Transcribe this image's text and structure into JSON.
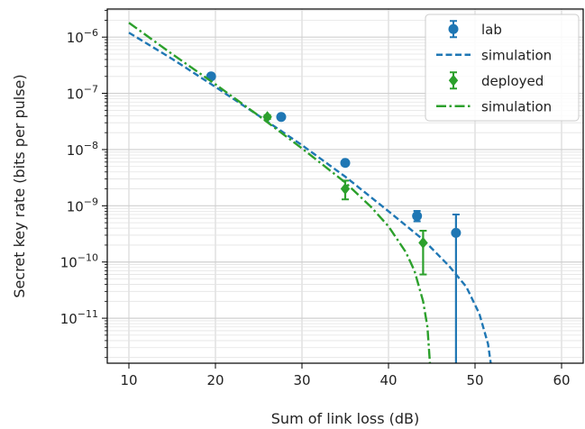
{
  "chart_data": {
    "type": "scatter",
    "xlabel": "Sum of link loss (dB)",
    "ylabel": "Secret key rate (bits per pulse)",
    "xlim": [
      7.5,
      62.5
    ],
    "ylim_log10": [
      -11.8,
      -5.5
    ],
    "y_scale": "log",
    "grid": true,
    "legend_position": "top-right",
    "x_ticks": [
      10,
      20,
      30,
      40,
      50,
      60
    ],
    "x_tick_labels": [
      "10",
      "20",
      "30",
      "40",
      "50",
      "60"
    ],
    "y_ticks_log10": [
      -6,
      -7,
      -8,
      -9,
      -10,
      -11
    ],
    "y_tick_labels": [
      {
        "base": "10",
        "exp": "−6"
      },
      {
        "base": "10",
        "exp": "−7"
      },
      {
        "base": "10",
        "exp": "−8"
      },
      {
        "base": "10",
        "exp": "−9"
      },
      {
        "base": "10",
        "exp": "−10"
      },
      {
        "base": "10",
        "exp": "−11"
      }
    ],
    "series": [
      {
        "name": "lab",
        "kind": "errorbar",
        "color": "#1f77b4",
        "marker": "circle",
        "x": [
          19.5,
          27.6,
          35.0,
          43.3,
          47.8
        ],
        "y": [
          2e-07,
          3.8e-08,
          5.8e-09,
          6.6e-10,
          3.3e-10
        ],
        "y_err_low": [
          1.9e-07,
          3.7e-08,
          5.6e-09,
          5.3e-10,
          1e-12
        ],
        "y_err_high": [
          2.1e-07,
          3.9e-08,
          6e-09,
          8.1e-10,
          7e-10
        ]
      },
      {
        "name": "simulation",
        "kind": "line",
        "style": "dashed",
        "color": "#1f77b4",
        "x": [
          10,
          15,
          20,
          25,
          30,
          35,
          40,
          44,
          47,
          49,
          50.5,
          51.5,
          52.0
        ],
        "y": [
          1.2e-06,
          4.1e-07,
          1.3e-07,
          4e-08,
          1.2e-08,
          3.3e-09,
          8e-10,
          2.5e-10,
          8.5e-11,
          3.6e-11,
          1.2e-11,
          3.5e-12,
          1e-12
        ]
      },
      {
        "name": "deployed",
        "kind": "errorbar",
        "color": "#2ca02c",
        "marker": "diamond",
        "x": [
          26.0,
          35.0,
          44.0
        ],
        "y": [
          3.8e-08,
          2e-09,
          2.2e-10
        ],
        "y_err_low": [
          3.5e-08,
          1.3e-09,
          6e-11
        ],
        "y_err_high": [
          4.1e-08,
          2.8e-09,
          3.6e-10
        ]
      },
      {
        "name": "simulation",
        "kind": "line",
        "style": "dashdot",
        "color": "#2ca02c",
        "x": [
          10,
          15,
          20,
          25,
          30,
          35,
          38,
          40,
          42,
          43,
          44,
          44.5,
          44.8
        ],
        "y": [
          1.8e-06,
          5e-07,
          1.45e-07,
          4e-08,
          1.05e-08,
          2.6e-09,
          9.5e-10,
          4.3e-10,
          1.5e-10,
          7e-11,
          2e-11,
          7e-12,
          1.5e-12
        ]
      }
    ]
  }
}
